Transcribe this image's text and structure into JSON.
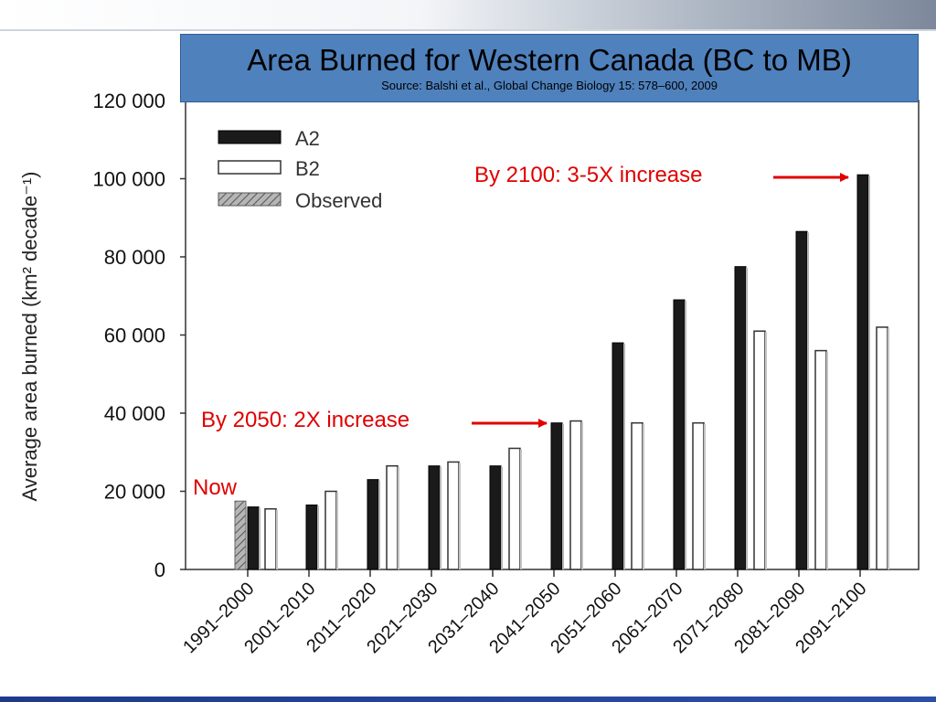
{
  "slide": {
    "title": "Area Burned for Western Canada (BC to MB)",
    "subtitle": "Source: Balshi et al., Global Change Biology 15: 578–600, 2009"
  },
  "colors": {
    "title_box": "#4f81bd",
    "a2_bar": "#1a1a1a",
    "b2_bar": "#ffffff",
    "observed_bar": "#9a9a9a",
    "annotation": "#e00000"
  },
  "chart_data": {
    "type": "bar",
    "xlabel": "",
    "ylabel": "Average area burned (km² decade⁻¹)",
    "ylim": [
      0,
      120000
    ],
    "yticks": [
      0,
      20000,
      40000,
      60000,
      80000,
      100000,
      120000
    ],
    "ytick_labels": [
      "0",
      "20 000",
      "40 000",
      "60 000",
      "80 000",
      "100 000",
      "120 000"
    ],
    "categories": [
      "1991–2000",
      "2001–2010",
      "2011–2020",
      "2021–2030",
      "2031–2040",
      "2041–2050",
      "2051–2060",
      "2061–2070",
      "2071–2080",
      "2081–2090",
      "2091–2100"
    ],
    "series": [
      {
        "name": "A2",
        "values": [
          16000,
          16500,
          23000,
          26500,
          26500,
          37500,
          58000,
          69000,
          77500,
          86500,
          101000
        ]
      },
      {
        "name": "B2",
        "values": [
          15500,
          20000,
          26500,
          27500,
          31000,
          38000,
          37500,
          37500,
          61000,
          56000,
          62000
        ]
      },
      {
        "name": "Observed",
        "values": [
          17500,
          null,
          null,
          null,
          null,
          null,
          null,
          null,
          null,
          null,
          null
        ]
      }
    ],
    "legend": {
      "placement": "top-left",
      "entries": [
        "A2",
        "B2",
        "Observed"
      ]
    },
    "grid": false,
    "annotations": [
      {
        "text": "By 2100: 3-5X increase",
        "target_category": "2091–2100"
      },
      {
        "text": "By 2050: 2X increase",
        "target_category": "2041–2050"
      },
      {
        "text": "Now",
        "target_category": "1991–2000"
      }
    ]
  }
}
